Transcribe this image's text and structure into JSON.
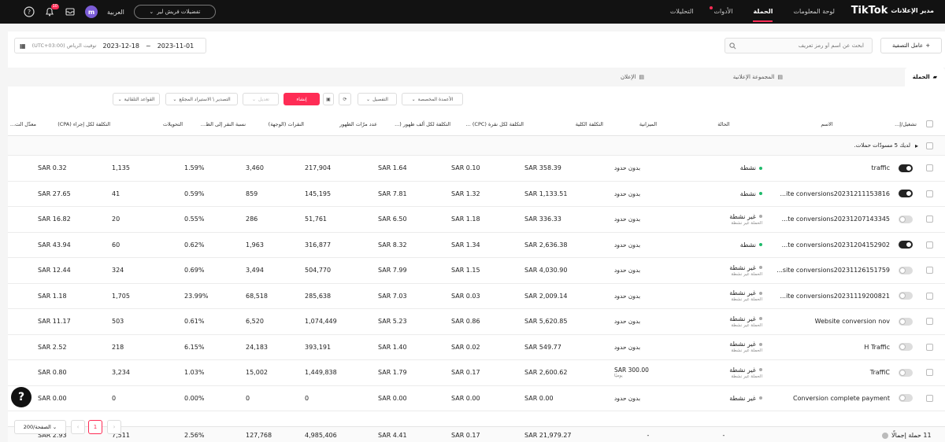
{
  "header": {
    "brand": "TikTok",
    "brand_sub": "مدير الإعلانات",
    "nav": [
      {
        "label": "لوحة المعلومات",
        "active": false
      },
      {
        "label": "الحملة",
        "active": true
      },
      {
        "label": "الأدوات",
        "active": false,
        "dot": true
      },
      {
        "label": "التحليلات",
        "active": false
      }
    ],
    "language": "العربية",
    "account_select": "تفضيلات فريش لير",
    "avatar_letter": "m",
    "notification_count": "10"
  },
  "toolbar_top": {
    "search_placeholder": "ابحث عن اسم أو رمز تعريف",
    "add_filter_label": "عامل التصفية",
    "date_start": "2023-11-01",
    "date_sep": "~",
    "date_end": "2023-12-18",
    "timezone": "(UTC+03:00) توقيت الرياض"
  },
  "tabs": [
    {
      "label": "الحملة",
      "active": true
    },
    {
      "label": "المجموعة الإعلانية",
      "active": false
    },
    {
      "label": "الإعلان",
      "active": false
    }
  ],
  "actions": {
    "create": "إنشاء",
    "edit": "تعديل",
    "export": "التصدير \\ الاستيراد المجمّع",
    "automated_rules": "القواعد التلقائية",
    "breakdown": "التفصيل",
    "custom_columns": "الأعمدة المخصصة"
  },
  "columns": {
    "toggle": "تشغيل/إ...",
    "name": "الاسم",
    "status": "الحالة",
    "budget": "الميزانية",
    "cost": "التكلفة الكلية",
    "cpc": "التكلفة لكل نقرة (CPC) ...",
    "cpm": "التكلفة لكل ألف ظهور (...",
    "impressions": "عدد مرّات الظهور",
    "clicks": "النقرات (الوجهة)",
    "ctr": "نسبة النقر إلى الظ...",
    "conversions": "التحويلات",
    "cpa": "التكلفة لكل إجراء (CPA)",
    "cvr": "معدّل الت..."
  },
  "group_note": "لديك 5 مسودّات حملات.",
  "rows": [
    {
      "toggle": true,
      "name": "traffic",
      "status": "نشطة",
      "status_active": true,
      "status_sub": "",
      "budget": "بدون حدود",
      "budget_sub": "",
      "cost": "SAR 358.39",
      "cpc": "SAR 0.10",
      "cpm": "SAR 1.64",
      "impressions": "217,904",
      "clicks": "3,460",
      "ctr": "1.59%",
      "conversions": "1,135",
      "cpa": "SAR 0.32"
    },
    {
      "toggle": true,
      "name": "...ite conversions20231211153816",
      "status": "نشطة",
      "status_active": true,
      "status_sub": "",
      "budget": "بدون حدود",
      "budget_sub": "",
      "cost": "SAR 1,133.51",
      "cpc": "SAR 1.32",
      "cpm": "SAR 7.81",
      "impressions": "145,195",
      "clicks": "859",
      "ctr": "0.59%",
      "conversions": "41",
      "cpa": "SAR 27.65"
    },
    {
      "toggle": false,
      "name": "...te conversions20231207143345",
      "status": "غير نشطة",
      "status_active": false,
      "status_sub": "الحملة غير نشطة",
      "budget": "بدون حدود",
      "budget_sub": "",
      "cost": "SAR 336.33",
      "cpc": "SAR 1.18",
      "cpm": "SAR 6.50",
      "impressions": "51,761",
      "clicks": "286",
      "ctr": "0.55%",
      "conversions": "20",
      "cpa": "SAR 16.82"
    },
    {
      "toggle": true,
      "name": "...te conversions20231204152902",
      "status": "نشطة",
      "status_active": true,
      "status_sub": "",
      "budget": "بدون حدود",
      "budget_sub": "",
      "cost": "SAR 2,636.38",
      "cpc": "SAR 1.34",
      "cpm": "SAR 8.32",
      "impressions": "316,877",
      "clicks": "1,963",
      "ctr": "0.62%",
      "conversions": "60",
      "cpa": "SAR 43.94"
    },
    {
      "toggle": false,
      "name": "...site conversions20231126151759",
      "status": "غير نشطة",
      "status_active": false,
      "status_sub": "الحملة غير نشطة",
      "budget": "بدون حدود",
      "budget_sub": "",
      "cost": "SAR 4,030.90",
      "cpc": "SAR 1.15",
      "cpm": "SAR 7.99",
      "impressions": "504,770",
      "clicks": "3,494",
      "ctr": "0.69%",
      "conversions": "324",
      "cpa": "SAR 12.44"
    },
    {
      "toggle": false,
      "name": "...ite conversions20231119200821",
      "status": "غير نشطة",
      "status_active": false,
      "status_sub": "الحملة غير نشطة",
      "budget": "بدون حدود",
      "budget_sub": "",
      "cost": "SAR 2,009.14",
      "cpc": "SAR 0.03",
      "cpm": "SAR 7.03",
      "impressions": "285,638",
      "clicks": "68,518",
      "ctr": "23.99%",
      "conversions": "1,705",
      "cpa": "SAR 1.18"
    },
    {
      "toggle": false,
      "name": "Website conversion nov",
      "status": "غير نشطة",
      "status_active": false,
      "status_sub": "الحملة غير نشطة",
      "budget": "بدون حدود",
      "budget_sub": "",
      "cost": "SAR 5,620.85",
      "cpc": "SAR 0.86",
      "cpm": "SAR 5.23",
      "impressions": "1,074,449",
      "clicks": "6,520",
      "ctr": "0.61%",
      "conversions": "503",
      "cpa": "SAR 11.17"
    },
    {
      "toggle": false,
      "name": "H Traffic",
      "status": "غير نشطة",
      "status_active": false,
      "status_sub": "الحملة غير نشطة",
      "budget": "بدون حدود",
      "budget_sub": "",
      "cost": "SAR 549.77",
      "cpc": "SAR 0.02",
      "cpm": "SAR 1.40",
      "impressions": "393,191",
      "clicks": "24,183",
      "ctr": "6.15%",
      "conversions": "218",
      "cpa": "SAR 2.52"
    },
    {
      "toggle": false,
      "name": "TraffiC",
      "status": "غير نشطة",
      "status_active": false,
      "status_sub": "الحملة غير نشطة",
      "budget": "SAR 300.00",
      "budget_sub": "يوميًا",
      "cost": "SAR 2,600.62",
      "cpc": "SAR 0.17",
      "cpm": "SAR 1.79",
      "impressions": "1,449,838",
      "clicks": "15,002",
      "ctr": "1.03%",
      "conversions": "3,234",
      "cpa": "SAR 0.80"
    },
    {
      "toggle": false,
      "name": "Conversion complete payment",
      "status": "غير نشطة",
      "status_active": false,
      "status_sub": "",
      "budget": "بدون حدود",
      "budget_sub": "",
      "cost": "SAR 0.00",
      "cpc": "SAR 0.00",
      "cpm": "SAR 0.00",
      "impressions": "0",
      "clicks": "0",
      "ctr": "0.00%",
      "conversions": "0",
      "cpa": "SAR 0.00"
    }
  ],
  "totals": {
    "label": "11 حملة إجمالًا",
    "status": "-",
    "budget": "-",
    "cost": "SAR 21,979.27",
    "cpc": "SAR 0.17",
    "cpm": "SAR 4.41",
    "impressions": "4,985,406",
    "clicks": "127,768",
    "ctr": "2.56%",
    "conversions": "7,511",
    "cpa": "SAR 2.93"
  },
  "pagination": {
    "page_size": "200/الصفحة",
    "current_page": "1"
  },
  "help_label": "?"
}
